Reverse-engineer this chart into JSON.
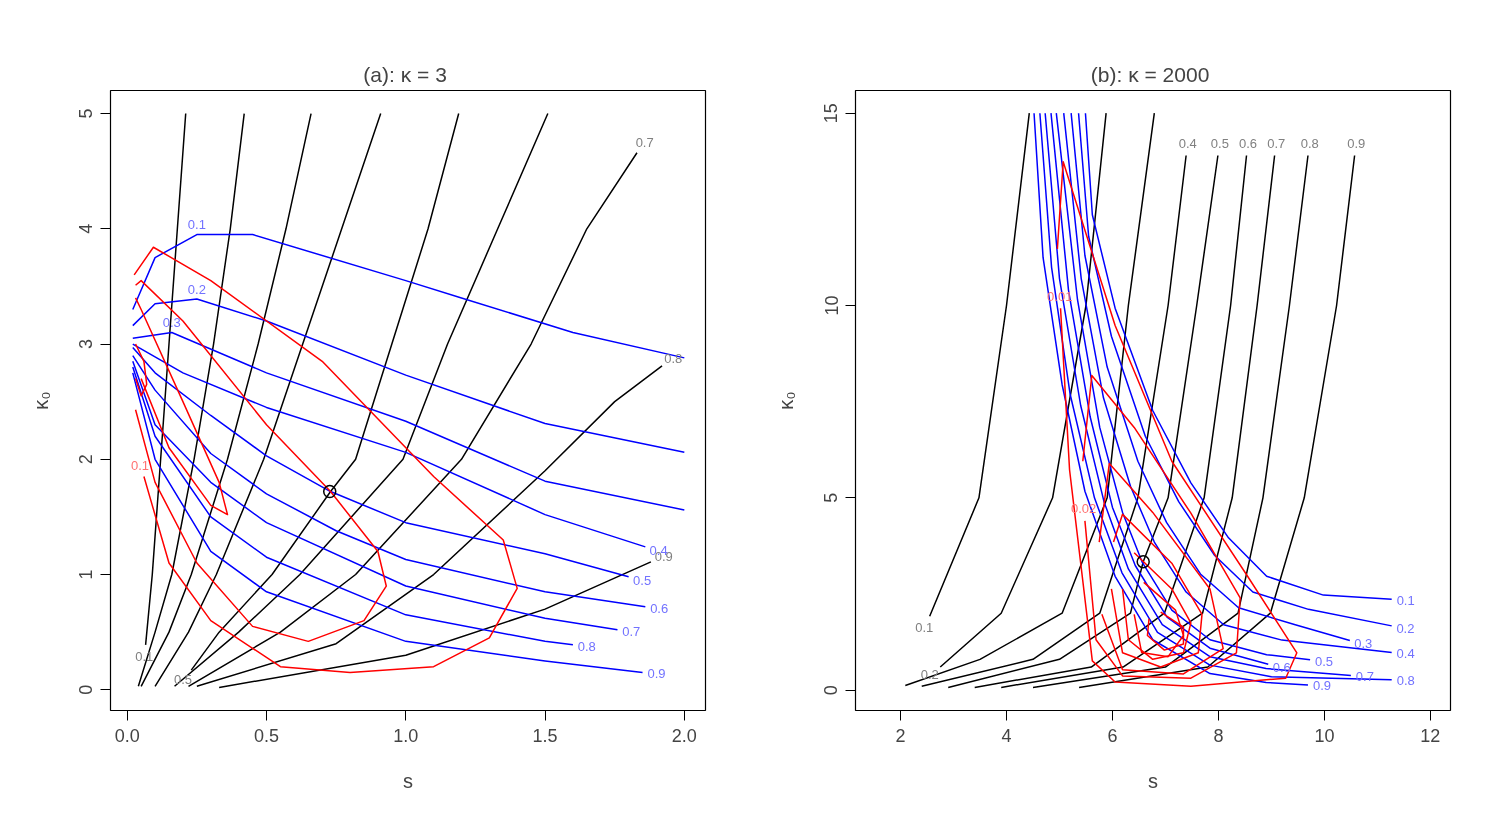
{
  "chart_data": [
    {
      "type": "line",
      "title": "(a):  κ = 3",
      "xlabel": "s",
      "ylabel": "κ₀",
      "xlim": [
        -0.06,
        2.076
      ],
      "ylim": [
        -0.18,
        5.2
      ],
      "xticks": [
        {
          "value": 0,
          "label": "0.0"
        },
        {
          "value": 0.5,
          "label": "0.5"
        },
        {
          "value": 1,
          "label": "1.0"
        },
        {
          "value": 1.5,
          "label": "1.5"
        },
        {
          "value": 2,
          "label": "2.0"
        }
      ],
      "yticks": [
        0,
        1,
        2,
        3,
        4,
        5
      ],
      "series": [
        {
          "color": "#000000",
          "x": [
            0.066,
            0.09,
            0.12,
            0.15,
            0.18,
            0.21
          ],
          "values": [
            0.39,
            1,
            2,
            3,
            4,
            5
          ]
        },
        {
          "color": "#000000",
          "x": [
            0.04,
            0.1,
            0.16,
            0.24,
            0.31,
            0.37,
            0.42
          ],
          "values": [
            0.03,
            0.5,
            1,
            2,
            3,
            4,
            5
          ]
        },
        {
          "color": "#000000",
          "x": [
            0.05,
            0.15,
            0.23,
            0.36,
            0.47,
            0.57,
            0.66
          ],
          "values": [
            0.03,
            0.5,
            1,
            2,
            3,
            4,
            5
          ]
        },
        {
          "color": "#000000",
          "x": [
            0.1,
            0.22,
            0.32,
            0.49,
            0.63,
            0.77,
            0.91
          ],
          "values": [
            0.03,
            0.5,
            1,
            2,
            3,
            4,
            5
          ]
        },
        {
          "color": "#000000",
          "x": [
            0.23,
            0.33,
            0.52,
            0.73,
            0.82,
            0.95,
            1.08,
            1.19
          ],
          "values": [
            0.17,
            0.5,
            1,
            1.72,
            2,
            3,
            4,
            5
          ]
        },
        {
          "color": "#000000",
          "x": [
            0.17,
            0.4,
            0.62,
            0.99,
            1.15,
            1.33,
            1.51
          ],
          "values": [
            0.03,
            0.5,
            1,
            2,
            3,
            4,
            5
          ]
        },
        {
          "color": "#000000",
          "x": [
            0.22,
            0.55,
            0.82,
            1.2,
            1.45,
            1.65,
            1.83
          ],
          "values": [
            0.03,
            0.5,
            1,
            2,
            3,
            4,
            4.66
          ]
        },
        {
          "color": "#000000",
          "x": [
            0.25,
            0.75,
            1.1,
            1.5,
            1.75,
            1.92
          ],
          "values": [
            0.03,
            0.4,
            1,
            1.9,
            2.5,
            2.81
          ]
        },
        {
          "color": "#000000",
          "x": [
            0.33,
            1.0,
            1.5,
            1.88
          ],
          "values": [
            0.02,
            0.3,
            0.7,
            1.11
          ]
        },
        {
          "color": "#0000ff",
          "x": [
            0.02,
            0.1,
            0.25,
            0.45,
            1.0,
            1.2,
            1.6,
            2.0
          ],
          "values": [
            3.3,
            3.75,
            3.95,
            3.95,
            3.55,
            3.4,
            3.1,
            2.88
          ]
        },
        {
          "color": "#0000ff",
          "x": [
            0.02,
            0.1,
            0.25,
            0.5,
            1.0,
            1.5,
            2.0
          ],
          "values": [
            3.16,
            3.35,
            3.39,
            3.2,
            2.73,
            2.31,
            2.06
          ]
        },
        {
          "color": "#0000ff",
          "x": [
            0.02,
            0.16,
            0.5,
            1.0,
            1.5,
            2.0
          ],
          "values": [
            3.05,
            3.1,
            2.75,
            2.33,
            1.81,
            1.56
          ]
        },
        {
          "color": "#0000ff",
          "x": [
            0.02,
            0.2,
            0.5,
            1.0,
            1.5,
            1.86
          ],
          "values": [
            3.0,
            2.75,
            2.45,
            2.06,
            1.52,
            1.24
          ]
        },
        {
          "color": "#0000ff",
          "x": [
            0.02,
            0.1,
            0.3,
            0.5,
            0.73,
            1.0,
            1.5,
            1.8
          ],
          "values": [
            2.97,
            2.75,
            2.38,
            2.03,
            1.72,
            1.45,
            1.18,
            0.98
          ]
        },
        {
          "color": "#0000ff",
          "x": [
            0.02,
            0.1,
            0.3,
            0.5,
            0.75,
            1.0,
            1.5,
            1.86
          ],
          "values": [
            2.9,
            2.6,
            2.05,
            1.7,
            1.38,
            1.13,
            0.85,
            0.72
          ]
        },
        {
          "color": "#0000ff",
          "x": [
            0.02,
            0.1,
            0.3,
            0.5,
            1.0,
            1.5,
            1.76
          ],
          "values": [
            2.85,
            2.3,
            1.8,
            1.45,
            0.9,
            0.62,
            0.52
          ]
        },
        {
          "color": "#0000ff",
          "x": [
            0.02,
            0.1,
            0.3,
            0.5,
            1.0,
            1.5,
            1.6
          ],
          "values": [
            2.8,
            2.2,
            1.5,
            1.15,
            0.65,
            0.42,
            0.39
          ]
        },
        {
          "color": "#0000ff",
          "x": [
            0.02,
            0.1,
            0.3,
            0.5,
            1.0,
            1.5,
            1.85
          ],
          "values": [
            2.75,
            2.0,
            1.2,
            0.85,
            0.42,
            0.25,
            0.15
          ]
        },
        {
          "color": "#ff0000",
          "x": [
            0.025,
            0.094,
            0.3,
            0.7,
            1.1,
            1.35,
            1.4,
            1.3,
            1.1,
            0.8,
            0.55,
            0.3,
            0.15,
            0.06
          ],
          "values": [
            3.6,
            3.84,
            3.55,
            2.85,
            1.85,
            1.3,
            0.88,
            0.45,
            0.2,
            0.15,
            0.2,
            0.6,
            1.1,
            1.85
          ]
        },
        {
          "color": "#ff0000",
          "x": [
            0.03,
            0.05,
            0.2,
            0.5,
            0.73,
            0.9,
            0.93,
            0.85,
            0.65,
            0.45,
            0.25,
            0.1,
            0.03
          ],
          "values": [
            3.51,
            3.55,
            3.2,
            2.3,
            1.72,
            1.2,
            0.9,
            0.6,
            0.42,
            0.55,
            1.1,
            1.8,
            2.43
          ]
        },
        {
          "color": "#ff0000",
          "x": [
            0.03,
            0.05,
            0.2,
            0.33,
            0.36,
            0.3,
            0.15,
            0.05
          ],
          "values": [
            3.4,
            3.3,
            2.5,
            1.8,
            1.52,
            1.6,
            2.1,
            2.7
          ]
        },
        {
          "color": "#ff0000",
          "x": [
            0.03,
            0.06,
            0.07,
            0.05,
            0.03
          ],
          "values": [
            3.0,
            2.85,
            2.65,
            2.55,
            2.7
          ]
        },
        {
          "type": "scatter",
          "marker": "circle",
          "color": "#000000",
          "x": [
            0.727
          ],
          "values": [
            1.72
          ]
        }
      ],
      "annotations": [
        {
          "text": "0.1",
          "x": 0.066,
          "y": 0.39
        },
        {
          "text": "0.5",
          "x": 0.23,
          "y": 0.17
        },
        {
          "text": "0.7",
          "x": 1.83,
          "y": 4.66
        },
        {
          "text": "0.8",
          "x": 1.92,
          "y": 2.81
        },
        {
          "text": "0.9",
          "x": 1.88,
          "y": 1.11
        },
        {
          "text": "0.1",
          "x": 0.25,
          "y": 3.95
        },
        {
          "text": "0.2",
          "x": 0.25,
          "y": 3.39
        },
        {
          "text": "0.3",
          "x": 0.16,
          "y": 3.1
        },
        {
          "text": "0.4",
          "x": 1.86,
          "y": 1.24
        },
        {
          "text": "0.5",
          "x": 1.8,
          "y": 0.98
        },
        {
          "text": "0.6",
          "x": 1.86,
          "y": 0.72
        },
        {
          "text": "0.7",
          "x": 1.76,
          "y": 0.52
        },
        {
          "text": "0.8",
          "x": 1.6,
          "y": 0.39
        },
        {
          "text": "0.9",
          "x": 1.85,
          "y": 0.15
        },
        {
          "text": "0.1",
          "x": 0.06,
          "y": 1.85
        }
      ]
    },
    {
      "type": "line",
      "title": "(b):  κ = 2000",
      "xlabel": "s",
      "ylabel": "κ₀",
      "xlim": [
        1.15,
        12.38
      ],
      "ylim": [
        -0.53,
        15.59
      ],
      "xticks": [
        2,
        4,
        6,
        8,
        10,
        12
      ],
      "yticks": [
        0,
        5,
        10,
        15
      ],
      "series": [
        {
          "color": "#000000",
          "x": [
            2.55,
            3.48,
            4.0,
            4.43
          ],
          "values": [
            1.92,
            5,
            10,
            15
          ]
        },
        {
          "color": "#000000",
          "x": [
            2.75,
            3.9,
            4.87,
            5.5,
            5.88
          ],
          "values": [
            0.6,
            2,
            5,
            10,
            15
          ]
        },
        {
          "color": "#000000",
          "x": [
            2.09,
            3.5,
            5.05,
            5.9,
            6.3,
            6.79
          ],
          "values": [
            0.12,
            0.8,
            2,
            5,
            10,
            15
          ]
        },
        {
          "color": "#000000",
          "x": [
            2.4,
            4.5,
            5.76,
            6.48,
            7.05,
            7.39
          ],
          "values": [
            0.1,
            0.8,
            2,
            5,
            10,
            13.9
          ]
        },
        {
          "color": "#000000",
          "x": [
            2.9,
            5.0,
            6.34,
            6.58,
            7.05,
            7.59,
            7.99
          ],
          "values": [
            0.07,
            0.8,
            2,
            3.34,
            5,
            10,
            13.9
          ]
        },
        {
          "color": "#000000",
          "x": [
            3.4,
            5.6,
            6.98,
            7.73,
            8.23,
            8.53
          ],
          "values": [
            0.07,
            0.6,
            2,
            5,
            10,
            13.9
          ]
        },
        {
          "color": "#000000",
          "x": [
            3.9,
            6.2,
            7.7,
            8.26,
            8.73,
            9.06
          ],
          "values": [
            0.07,
            0.6,
            2,
            5,
            10,
            13.9
          ]
        },
        {
          "color": "#000000",
          "x": [
            4.5,
            7.0,
            8.37,
            8.84,
            9.34,
            9.69
          ],
          "values": [
            0.07,
            0.6,
            2,
            5,
            10,
            13.9
          ]
        },
        {
          "color": "#000000",
          "x": [
            5.37,
            7.8,
            8.98,
            9.62,
            10.23,
            10.57
          ],
          "values": [
            0.07,
            0.6,
            2,
            5,
            10,
            13.9
          ]
        },
        {
          "color": "#0000ff",
          "x": [
            5.49,
            5.62,
            6.05,
            6.76,
            7.48,
            8.19,
            8.91,
            9.98,
            11.27
          ],
          "values": [
            15,
            12.36,
            9.93,
            7.27,
            5.39,
            3.96,
            2.96,
            2.47,
            2.36
          ]
        },
        {
          "color": "#0000ff",
          "x": [
            5.36,
            5.55,
            5.98,
            6.62,
            7.25,
            7.93,
            8.65,
            9.7,
            11.27
          ],
          "values": [
            15,
            11.8,
            9.2,
            6.6,
            4.9,
            3.5,
            2.55,
            2.1,
            1.67
          ]
        },
        {
          "color": "#0000ff",
          "x": [
            5.22,
            5.48,
            5.9,
            6.48,
            7.02,
            7.66,
            8.38,
            9.45,
            10.48
          ],
          "values": [
            15,
            11.3,
            8.4,
            5.95,
            4.36,
            3.02,
            2.14,
            1.7,
            1.29
          ]
        },
        {
          "color": "#0000ff",
          "x": [
            5.08,
            5.41,
            5.83,
            6.34,
            6.79,
            7.39,
            8.1,
            9.2,
            11.27
          ],
          "values": [
            15,
            10.7,
            7.6,
            5.3,
            3.85,
            2.55,
            1.7,
            1.3,
            0.98
          ]
        },
        {
          "color": "#0000ff",
          "x": [
            4.94,
            5.34,
            5.76,
            6.19,
            6.56,
            7.12,
            7.84,
            8.91,
            9.73
          ],
          "values": [
            15,
            10.15,
            6.83,
            4.62,
            3.33,
            2.08,
            1.31,
            0.92,
            0.79
          ]
        },
        {
          "color": "#0000ff",
          "x": [
            4.84,
            5.17,
            5.58,
            6.0,
            6.43,
            7.03,
            7.84,
            8.94
          ],
          "values": [
            15,
            10.4,
            7.1,
            4.75,
            3.24,
            1.9,
            1.09,
            0.67
          ]
        },
        {
          "color": "#0000ff",
          "x": [
            4.73,
            5.0,
            5.4,
            5.84,
            6.3,
            6.94,
            7.84,
            8.9,
            10.5
          ],
          "values": [
            15,
            10.7,
            7.4,
            4.9,
            3.15,
            1.7,
            0.87,
            0.56,
            0.38
          ]
        },
        {
          "color": "#0000ff",
          "x": [
            4.63,
            4.85,
            5.2,
            5.66,
            6.18,
            6.85,
            7.84,
            9.0,
            11.27
          ],
          "values": [
            15,
            11.0,
            7.7,
            5.0,
            3.05,
            1.5,
            0.65,
            0.35,
            0.27
          ]
        },
        {
          "color": "#0000ff",
          "x": [
            4.52,
            4.69,
            5.05,
            5.48,
            6.05,
            6.76,
            7.84,
            8.9,
            9.69
          ],
          "values": [
            15,
            11.25,
            7.94,
            5.17,
            2.96,
            1.31,
            0.43,
            0.2,
            0.13
          ]
        },
        {
          "color": "#ff0000",
          "x": [
            4.96,
            5.07,
            6.05,
            7.12,
            8.55,
            9.48,
            9.27,
            7.48,
            6.05,
            5.62,
            5.19,
            5.02
          ],
          "values": [
            11.47,
            13.74,
            9.48,
            5.95,
            2.96,
            0.97,
            0.31,
            0.1,
            0.21,
            0.76,
            5.73,
            9.93
          ]
        },
        {
          "color": "#ff0000",
          "x": [
            5.44,
            5.61,
            6.41,
            7.48,
            8.41,
            8.34,
            7.48,
            6.19,
            5.69,
            5.48
          ],
          "values": [
            5.95,
            8.18,
            6.83,
            4.6,
            2.4,
            0.97,
            0.31,
            0.37,
            1.31,
            4.4
          ]
        },
        {
          "color": "#ff0000",
          "x": [
            5.75,
            5.94,
            6.76,
            7.84,
            8.09,
            7.34,
            6.19,
            5.8
          ],
          "values": [
            3.85,
            5.89,
            4.62,
            2.63,
            1.08,
            0.42,
            0.53,
            1.97
          ]
        },
        {
          "color": "#ff0000",
          "x": [
            6.02,
            6.19,
            7.12,
            7.69,
            7.62,
            6.91,
            6.19,
            5.98
          ],
          "values": [
            3.85,
            4.57,
            3.3,
            1.97,
            0.97,
            0.6,
            0.97,
            2.63
          ]
        },
        {
          "color": "#ff0000",
          "x": [
            6.41,
            7.12,
            7.48,
            7.34,
            6.76,
            6.3,
            6.19
          ],
          "values": [
            3.57,
            2.63,
            1.75,
            0.97,
            0.8,
            1.31,
            2.63
          ]
        },
        {
          "color": "#ff0000",
          "x": [
            6.59,
            7.19,
            7.34,
            7.05,
            6.55,
            6.41
          ],
          "values": [
            2.8,
            2.08,
            1.42,
            0.87,
            0.98,
            1.97
          ]
        },
        {
          "color": "#ff0000",
          "x": [
            6.91,
            7.34,
            7.34,
            6.98,
            6.66,
            6.69
          ],
          "values": [
            2.03,
            1.64,
            1.2,
            1.04,
            1.42,
            1.86
          ]
        },
        {
          "type": "scatter",
          "marker": "circle",
          "color": "#000000",
          "x": [
            6.58
          ],
          "values": [
            3.34
          ]
        }
      ],
      "annotations": [
        {
          "text": "0.1",
          "x": 2.55,
          "y": 1.92
        },
        {
          "text": "0.2",
          "x": 2.75,
          "y": 0.6
        },
        {
          "text": "0.4",
          "x": 7.39,
          "y": 13.9
        },
        {
          "text": "0.5",
          "x": 7.99,
          "y": 13.9
        },
        {
          "text": "0.6",
          "x": 8.53,
          "y": 13.9
        },
        {
          "text": "0.7",
          "x": 9.06,
          "y": 13.9
        },
        {
          "text": "0.8",
          "x": 9.69,
          "y": 13.9
        },
        {
          "text": "0.9",
          "x": 10.57,
          "y": 13.9
        },
        {
          "text": "0.1",
          "x": 11.27,
          "y": 2.36
        },
        {
          "text": "0.2",
          "x": 11.27,
          "y": 1.67
        },
        {
          "text": "0.3",
          "x": 10.48,
          "y": 1.29
        },
        {
          "text": "0.4",
          "x": 11.27,
          "y": 0.98
        },
        {
          "text": "0.5",
          "x": 9.73,
          "y": 0.79
        },
        {
          "text": "0.6",
          "x": 8.94,
          "y": 0.67
        },
        {
          "text": "0.7",
          "x": 10.5,
          "y": 0.38
        },
        {
          "text": "0.8",
          "x": 11.27,
          "y": 0.27
        },
        {
          "text": "0.9",
          "x": 9.69,
          "y": 0.13
        },
        {
          "text": "0.01",
          "x": 5.02,
          "y": 9.93
        },
        {
          "text": "0.02",
          "x": 5.48,
          "y": 4.4
        }
      ]
    }
  ]
}
